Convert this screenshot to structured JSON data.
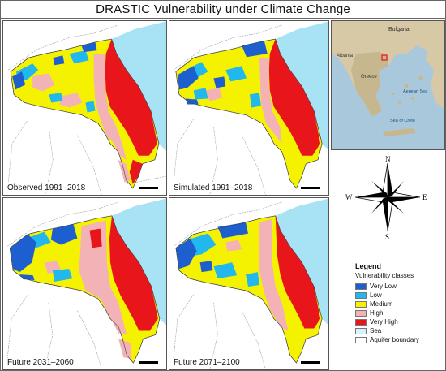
{
  "title": "DRASTIC  Vulnerability under Climate Change",
  "panels": [
    {
      "label": "Observed 1991–2018"
    },
    {
      "label": "Simulated 1991–2018"
    },
    {
      "label": "Future 2031–2060"
    },
    {
      "label": "Future 2071–2100"
    }
  ],
  "locator": {
    "labels": {
      "bulgaria": "Bulgaria",
      "albania": "Albania",
      "greece": "Greece",
      "aegean": "Aegean Sea",
      "sea_of_crete": "Sea of Crete"
    }
  },
  "compass": {
    "n": "N",
    "s": "S",
    "e": "E",
    "w": "W"
  },
  "legend": {
    "title": "Legend",
    "subtitle": "Vulnerability classes",
    "items": [
      {
        "label": "Very Low",
        "color": "#1e5fd0"
      },
      {
        "label": "Low",
        "color": "#22b8ee"
      },
      {
        "label": "Medium",
        "color": "#f5f200"
      },
      {
        "label": "High",
        "color": "#f3b3b6"
      },
      {
        "label": "Very High",
        "color": "#e8161b"
      },
      {
        "label": "Sea",
        "color": "#d6f2fb"
      },
      {
        "label": "Aquifer boundary",
        "color": "#ffffff"
      }
    ]
  },
  "colors": {
    "sea": "#a8e3f5",
    "border": "#555555",
    "road": "#9a9a9a"
  }
}
